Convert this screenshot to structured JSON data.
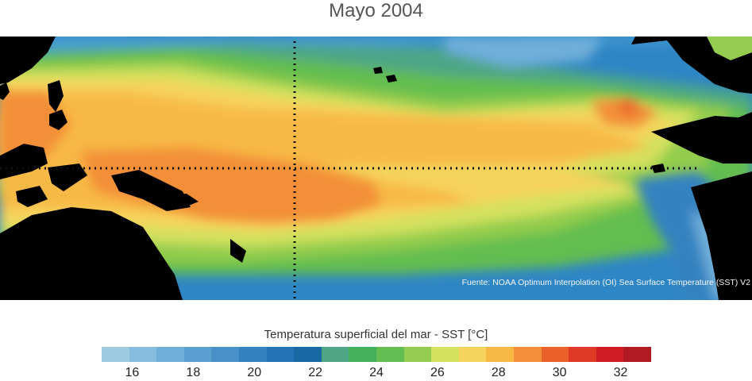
{
  "title": "Mayo 2004",
  "source": "Fuente: NOAA Optimum Interpolation (OI) Sea Surface Temperature (SST) V2",
  "colorbar": {
    "title": "Temperatura superficial del mar - SST  [°C]",
    "min": 15,
    "max": 33,
    "colors": [
      "#9ecae1",
      "#86bcde",
      "#6fafd9",
      "#5aa0d2",
      "#4791c8",
      "#3482c0",
      "#2274b6",
      "#176aa4",
      "#4ea687",
      "#43b05c",
      "#63bd50",
      "#93cc4e",
      "#d4e15e",
      "#f6d35d",
      "#f7b944",
      "#f28f38",
      "#ea612a",
      "#de3a26",
      "#cf1c22",
      "#b11a22"
    ],
    "ticks": [
      "16",
      "18",
      "20",
      "22",
      "24",
      "26",
      "28",
      "30",
      "32"
    ]
  },
  "chart_data": {
    "type": "heatmap",
    "title": "Mayo 2004",
    "variable": "Temperatura superficial del mar - SST",
    "units": "°C",
    "range": [
      15,
      33
    ]
  }
}
